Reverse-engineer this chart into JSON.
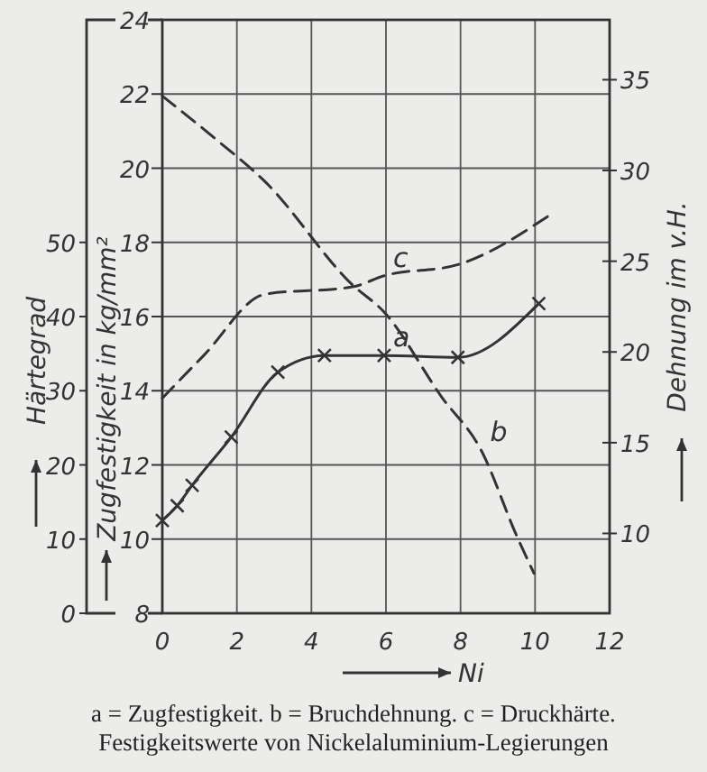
{
  "chart_data": {
    "type": "line",
    "xlabel": "Ni",
    "ylabel": "Zugfestigkeit in kg/mm²",
    "y2label": "Härtegrad",
    "y3label": "Dehnung im v.H.",
    "xlim": [
      0,
      12
    ],
    "xticks": [
      0,
      2,
      4,
      6,
      8,
      10,
      12
    ],
    "ylim": [
      8,
      24
    ],
    "yticks": [
      8,
      10,
      12,
      14,
      16,
      18,
      20,
      22,
      24
    ],
    "y2lim": [
      0,
      80
    ],
    "y2ticks": [
      0,
      10,
      20,
      30,
      40,
      50
    ],
    "y3lim": [
      5.6,
      38.3
    ],
    "y3ticks": [
      10,
      15,
      20,
      25,
      30,
      35
    ],
    "grid": true,
    "series": [
      {
        "name": "a",
        "color": "#333333",
        "marker": "cross",
        "line_style": "solid",
        "x": [
          0,
          0.4,
          0.8,
          1.85,
          3.1,
          4.35,
          5.95,
          7.93,
          10.1
        ],
        "values": [
          10.5,
          10.9,
          11.45,
          12.75,
          14.5,
          14.95,
          14.95,
          14.9,
          16.35
        ]
      },
      {
        "name": "b",
        "color": "#333333",
        "marker": "none",
        "line_style": "dashed",
        "axis": "y3",
        "x": [
          0,
          1.45,
          2.75,
          5.1,
          5.95,
          7.5,
          8.55,
          9.5,
          9.97
        ],
        "values": [
          34.1,
          31.7,
          29.4,
          23.7,
          22.2,
          17.5,
          14.6,
          9.9,
          7.8
        ]
      },
      {
        "name": "c",
        "color": "#333333",
        "marker": "none",
        "line_style": "dashed",
        "axis": "y2",
        "x": [
          0,
          1.1,
          2.75,
          5.1,
          5.95,
          7.93,
          10.4
        ],
        "values": [
          29,
          34.7,
          43,
          44,
          45.5,
          47,
          53.7
        ]
      }
    ],
    "annotations": [
      "a = Zugfestigkeit.   b = Bruchdehnung.   c = Druckhärte.",
      "Festigkeitswerte von Nickelaluminium-Legierungen"
    ]
  }
}
